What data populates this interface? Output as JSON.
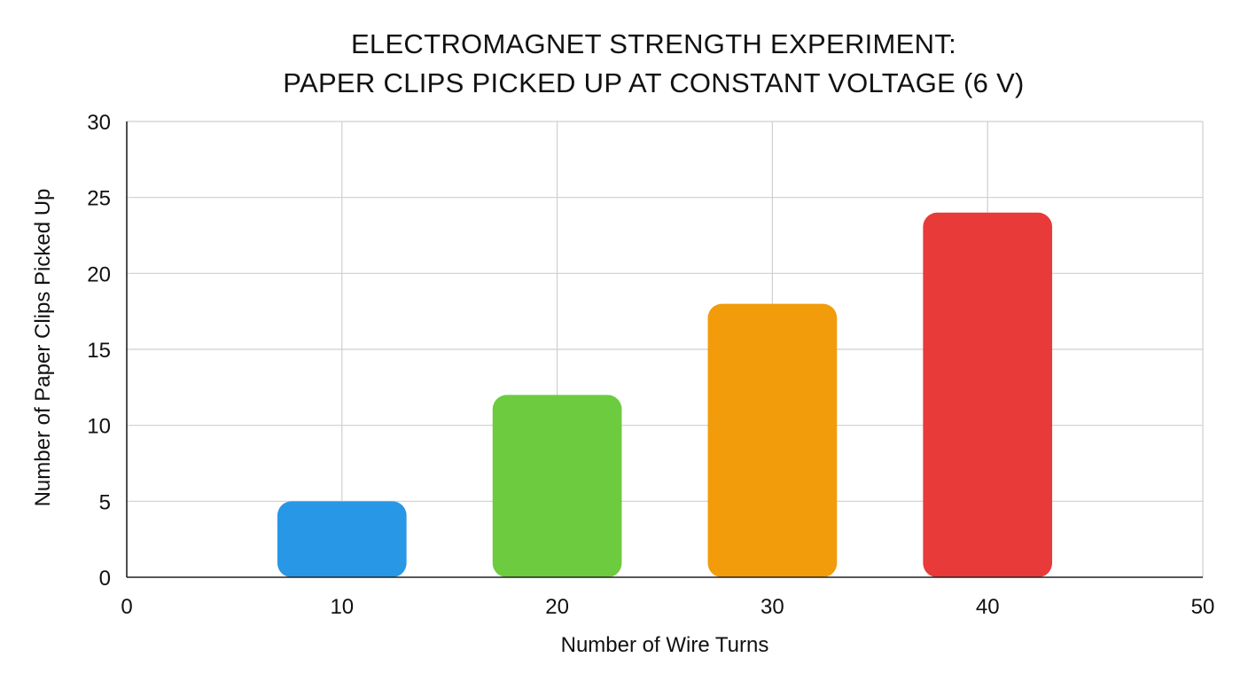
{
  "chart_data": {
    "type": "bar",
    "title": "ELECTROMAGNET STRENGTH EXPERIMENT:",
    "subtitle": "PAPER CLIPS PICKED UP AT CONSTANT VOLTAGE (6 V)",
    "xlabel": "Number of Wire Turns",
    "ylabel": "Number of Paper Clips Picked Up",
    "x": [
      10,
      20,
      30,
      40
    ],
    "values": [
      5,
      12,
      18,
      24
    ],
    "bar_width": 6,
    "xlim": [
      0,
      50
    ],
    "ylim": [
      0,
      30
    ],
    "x_ticks": [
      0,
      10,
      20,
      30,
      40,
      50
    ],
    "y_ticks": [
      0,
      5,
      10,
      15,
      20,
      25,
      30
    ],
    "grid": true,
    "legend": "none",
    "colors": [
      "#2897e6",
      "#6ccb3e",
      "#f29b0b",
      "#e83a38"
    ],
    "grid_color": "#cfcfcf",
    "axis_color": "#222222"
  }
}
